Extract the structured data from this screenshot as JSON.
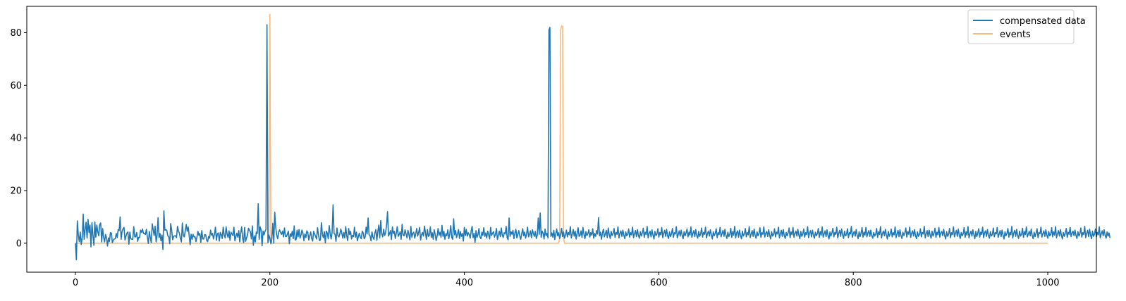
{
  "chart_data": {
    "type": "line",
    "title": "",
    "xlabel": "",
    "ylabel": "",
    "xlim": [
      -50,
      1050
    ],
    "ylim": [
      -11,
      90
    ],
    "xticks": [
      0,
      200,
      400,
      600,
      800,
      1000
    ],
    "yticks": [
      0,
      20,
      40,
      60,
      80
    ],
    "grid": false,
    "legend_position": "top-right",
    "series": [
      {
        "name": "compensated data",
        "color": "#1f77b4",
        "values": [
          0.0,
          -6.3,
          8.5,
          3.1,
          0.6,
          4.2,
          -0.5,
          2.2,
          11.1,
          1.5,
          5.3,
          8.0,
          2.0,
          9.1,
          4.0,
          6.9,
          -1.4,
          7.8,
          3.1,
          -0.8,
          8.1,
          2.3,
          6.9,
          4.4,
          2.8,
          7.1,
          7.7,
          0.5,
          5.6,
          2.2,
          0.5,
          3.3,
          2.1,
          -1.1,
          2.0,
          0.6,
          4.0,
          3.9,
          0.2,
          1.2,
          1.6,
          1.7,
          3.7,
          2.2,
          5.2,
          4.8,
          10.0,
          1.5,
          4.5,
          5.5,
          6.0,
          1.2,
          2.6,
          3.9,
          4.3,
          -0.4,
          4.2,
          1.7,
          1.5,
          1.5,
          6.3,
          2.4,
          2.4,
          4.1,
          0.7,
          2.2,
          2.1,
          5.0,
          4.1,
          5.4,
          3.7,
          3.8,
          3.3,
          5.3,
          2.3,
          -0.1,
          4.5,
          2.2,
          0.2,
          7.4,
          5.2,
          2.9,
          6.5,
          0.5,
          3.0,
          9.7,
          2.1,
          3.7,
          0.9,
          3.1,
          -2.4,
          12.3,
          4.9,
          5.1,
          4.9,
          2.8,
          2.5,
          -0.2,
          7.5,
          4.9,
          1.3,
          2.6,
          2.8,
          2.8,
          2.1,
          6.4,
          4.6,
          3.8,
          1.8,
          0.5,
          7.7,
          2.9,
          2.4,
          4.8,
          7.1,
          4.5,
          6.2,
          2.9,
          -0.6,
          3.4,
          1.5,
          3.4,
          2.4,
          2.5,
          0.6,
          2.4,
          4.5,
          3.0,
          3.7,
          0.3,
          4.8,
          1.6,
          1.6,
          3.3,
          3.2,
          1.1,
          0.6,
          2.6,
          1.9,
          5.0,
          3.1,
          3.7,
          1.6,
          3.4,
          6.1,
          1.1,
          3.6,
          3.9,
          0.8,
          4.1,
          3.2,
          1.8,
          6.1,
          3.1,
          2.0,
          6.2,
          3.5,
          2.2,
          4.7,
          1.1,
          4.2,
          3.5,
          2.9,
          6.1,
          0.9,
          2.5,
          3.8,
          2.3,
          4.8,
          0.5,
          4.0,
          6.2,
          1.8,
          0.2,
          6.0,
          0.7,
          2.0,
          3.1,
          5.7,
          4.9,
          4.3,
          1.6,
          6.6,
          -0.8,
          2.8,
          0.5,
          4.2,
          3.7,
          15.0,
          1.5,
          6.2,
          5.0,
          -1.0,
          4.6,
          3.2,
          4.5,
          5.3,
          83.0,
          0.2,
          3.1,
          1.9,
          -0.2,
          1.6,
          7.6,
          0.0,
          11.8,
          6.0,
          3.1,
          1.7,
          4.1,
          5.1,
          4.0,
          3.4,
          4.6,
          2.4,
          5.8,
          2.6,
          2.5,
          3.4,
          4.6,
          -0.2,
          3.6,
          2.6,
          4.6,
          1.7,
          6.6,
          1.2,
          1.4,
          5.0,
          2.4,
          5.2,
          1.9,
          3.1,
          5.0,
          3.8,
          0.9,
          3.5,
          2.2,
          4.7,
          4.1,
          1.2,
          2.8,
          4.3,
          1.7,
          0.8,
          4.5,
          3.5,
          2.6,
          1.6,
          5.9,
          3.1,
          1.0,
          1.3,
          7.8,
          3.4,
          2.1,
          4.4,
          0.1,
          4.6,
          3.9,
          1.7,
          6.7,
          3.6,
          1.6,
          4.1,
          14.6,
          3.7,
          3.4,
          0.7,
          5.8,
          2.8,
          2.4,
          3.6,
          5.4,
          3.7,
          1.9,
          4.1,
          2.0,
          6.3,
          2.9,
          1.0,
          5.6,
          3.3,
          4.5,
          1.6,
          3.0,
          2.5,
          6.1,
          2.3,
          4.2,
          0.9,
          2.5,
          3.8,
          2.3,
          1.7,
          4.6,
          3.9,
          1.7,
          2.4,
          6.1,
          3.5,
          9.6,
          3.3,
          2.9,
          0.9,
          4.3,
          2.3,
          1.5,
          3.9,
          5.2,
          1.1,
          4.4,
          6.9,
          2.0,
          8.6,
          3.6,
          2.4,
          5.3,
          2.9,
          4.0,
          6.9,
          12.0,
          2.7,
          3.6,
          4.8,
          1.4,
          6.2,
          3.7,
          4.5,
          1.8,
          3.8,
          6.3,
          2.6,
          3.4,
          4.3,
          1.5,
          7.2,
          3.1,
          2.8,
          5.1,
          3.6,
          2.0,
          4.9,
          3.3,
          1.3,
          6.4,
          2.3,
          3.7,
          4.2,
          1.9,
          3.6,
          5.6,
          2.7,
          4.1,
          6.0,
          1.2,
          3.2,
          4.1,
          2.7,
          6.5,
          3.9,
          1.5,
          5.2,
          2.6,
          3.0,
          6.2,
          2.2,
          4.0,
          1.5,
          5.1,
          3.4,
          1.0,
          2.8,
          5.6,
          3.0,
          4.2,
          2.3,
          6.8,
          2.6,
          4.5,
          1.5,
          3.6,
          2.9,
          5.1,
          1.7,
          3.5,
          6.7,
          2.2,
          1.5,
          9.3,
          3.2,
          4.8,
          2.1,
          3.6,
          5.2,
          1.8,
          4.4,
          2.6,
          3.7,
          0.8,
          6.0,
          2.9,
          5.3,
          2.7,
          4.0,
          3.3,
          1.9,
          4.6,
          6.4,
          2.1,
          3.7,
          0.3,
          4.8,
          2.2,
          3.3,
          5.6,
          2.4,
          1.7,
          4.2,
          3.0,
          5.9,
          2.6,
          3.9,
          2.0,
          4.6,
          3.2,
          1.6,
          6.0,
          2.9,
          3.8,
          4.4,
          2.3,
          3.4,
          5.6,
          1.4,
          3.1,
          4.6,
          2.5,
          5.8,
          3.0,
          2.2,
          4.0,
          3.5,
          6.4,
          2.2,
          1.3,
          9.6,
          2.6,
          4.4,
          3.4,
          4.9,
          1.7,
          3.9,
          5.3,
          2.0,
          3.3,
          4.8,
          2.7,
          1.5,
          3.6,
          5.5,
          2.8,
          4.2,
          1.9,
          3.5,
          6.1,
          2.4,
          3.3,
          4.7,
          2.1,
          5.1,
          3.7,
          2.6,
          4.5,
          1.8,
          3.0,
          9.6,
          3.4,
          11.5,
          2.2,
          4.6,
          3.8,
          1.6,
          5.4,
          2.9,
          3.7,
          2.0,
          81.0,
          82.0,
          2.6,
          3.9,
          2.3,
          4.9,
          1.4,
          3.6,
          5.4,
          2.8,
          4.0,
          1.8,
          3.3,
          5.7,
          2.5,
          4.3,
          1.9,
          3.1,
          5.0,
          2.4,
          4.1,
          3.2,
          6.3,
          2.0,
          3.5,
          5.2,
          2.7,
          4.6,
          1.6,
          3.8,
          5.9,
          2.6,
          3.0,
          4.7,
          2.2,
          6.0,
          3.3,
          1.7,
          4.4,
          2.9,
          3.6,
          5.1,
          2.3,
          4.0,
          3.1,
          5.5,
          1.9,
          3.7,
          2.6,
          4.8,
          3.5,
          9.7,
          2.8,
          4.2,
          1.5,
          3.9,
          5.3,
          2.4,
          3.6,
          4.9,
          2.1,
          5.8,
          3.3,
          1.8,
          4.5,
          2.9,
          3.7,
          5.6,
          2.2,
          4.1,
          3.4,
          6.2,
          2.0,
          3.8,
          4.7,
          2.6,
          5.0,
          3.1,
          1.7,
          4.3,
          2.8,
          3.5,
          5.4,
          2.3,
          4.0,
          3.2,
          6.1,
          2.1,
          3.6,
          4.8,
          2.5,
          5.2,
          3.0,
          1.9,
          4.4,
          2.7,
          3.9,
          5.7,
          2.2,
          4.2,
          3.3,
          6.4,
          2.0,
          3.7,
          4.6,
          2.4,
          5.1,
          3.1,
          1.6,
          4.5,
          2.9,
          3.4,
          5.5,
          2.3,
          4.1,
          3.2,
          6.0,
          2.1,
          3.8,
          4.9,
          2.6,
          5.3,
          2.8,
          1.8,
          4.3,
          2.5,
          3.6,
          5.6,
          2.2,
          4.0,
          3.5,
          6.3,
          2.0,
          3.3,
          4.7,
          2.7,
          5.0,
          3.0,
          1.7,
          4.4,
          2.8,
          3.9,
          5.4,
          2.4,
          4.2,
          3.1,
          6.2,
          2.2,
          3.7,
          4.8,
          2.5,
          5.2,
          2.9,
          1.9,
          4.5,
          2.6,
          3.5,
          5.8,
          2.3,
          4.1,
          3.4,
          6.1,
          2.0,
          3.6,
          4.6,
          2.7,
          5.1,
          3.2,
          1.6,
          4.3,
          2.8,
          3.8,
          5.5,
          2.1,
          4.0,
          3.3,
          6.0,
          2.4,
          3.7,
          4.9,
          2.6,
          5.3,
          3.0,
          1.8,
          4.2,
          2.5,
          3.4,
          5.7,
          2.2,
          4.4,
          3.1,
          6.4,
          2.0,
          3.9,
          4.7,
          2.3,
          5.0,
          2.9,
          1.7,
          4.6,
          2.7,
          3.6,
          5.6,
          2.4,
          4.1,
          3.2,
          6.3,
          2.1,
          3.5,
          4.8,
          2.6,
          5.4,
          3.1,
          1.9,
          4.3,
          2.8,
          3.7,
          5.9,
          2.2,
          4.0,
          3.4,
          6.2,
          2.3,
          3.8,
          4.5,
          2.5,
          5.1,
          3.0,
          1.6,
          4.4,
          2.7,
          3.3,
          5.5,
          2.4,
          4.2,
          3.5,
          6.1,
          2.0,
          3.6,
          4.9,
          2.6,
          5.2,
          2.9,
          1.8,
          4.1,
          2.8,
          3.9,
          5.8,
          2.1,
          4.3,
          3.2,
          6.0,
          2.2,
          3.7,
          4.6,
          2.7,
          5.3,
          3.1,
          1.7,
          4.5,
          2.6,
          3.4,
          5.4,
          2.3,
          4.0,
          3.3,
          6.3,
          2.1,
          3.8,
          4.8,
          2.4,
          5.0,
          3.0,
          1.9,
          4.2,
          2.8,
          3.6,
          5.6,
          2.2,
          4.4,
          3.1,
          6.2,
          2.3,
          3.5,
          4.7,
          2.5,
          5.1,
          2.9,
          1.6,
          4.3,
          2.7,
          3.9,
          5.7,
          2.4,
          4.1,
          3.4,
          6.1,
          2.0,
          3.7,
          4.9,
          2.6,
          5.4,
          3.2,
          1.8,
          4.6,
          2.8,
          3.3,
          5.5,
          2.1,
          4.0,
          3.5,
          6.4,
          2.2,
          3.6,
          4.5,
          2.7,
          5.2,
          3.0,
          1.7,
          4.4,
          2.5,
          3.8,
          5.9,
          2.3,
          4.2,
          3.1,
          6.0,
          2.4,
          3.9,
          4.8,
          2.6,
          5.0,
          2.9,
          1.9,
          4.1,
          2.7,
          3.4,
          5.6,
          2.2,
          4.3,
          3.3,
          6.3,
          2.0,
          3.7,
          4.6,
          2.8,
          5.3,
          3.1,
          1.6,
          4.5,
          2.6,
          3.6,
          5.4,
          2.4,
          4.0,
          3.2,
          6.2,
          2.1,
          3.5,
          4.9,
          2.5,
          5.1,
          3.0,
          1.8,
          4.2,
          2.9,
          3.9,
          5.8,
          2.3,
          4.4,
          3.4,
          6.1,
          2.2,
          3.8,
          4.7,
          2.7,
          5.2,
          2.8,
          1.7,
          4.3,
          2.6,
          3.3,
          5.5,
          2.4,
          4.1,
          3.5,
          6.4,
          2.0,
          3.6,
          4.8,
          2.5,
          5.0,
          3.1,
          1.9,
          4.6,
          2.7,
          3.7,
          5.7,
          2.2,
          4.2,
          3.2,
          6.0,
          2.3,
          3.9,
          4.5,
          2.8,
          5.3,
          2.9,
          1.6,
          4.4,
          2.6,
          3.4,
          5.6,
          2.1,
          4.0,
          3.3,
          6.2,
          2.4,
          3.7,
          4.9,
          2.6,
          5.4,
          3.0,
          1.8,
          4.1,
          2.8,
          3.6,
          5.9,
          2.2,
          4.3,
          3.1,
          6.3,
          2.0,
          3.5,
          4.6,
          2.7,
          5.1,
          3.2,
          1.7,
          4.5,
          2.5,
          3.8,
          5.5,
          2.3,
          4.2,
          3.4,
          6.1,
          2.1,
          3.9,
          4.7,
          2.6,
          5.2,
          2.9,
          1.9,
          4.4,
          2.7,
          3.3,
          5.8,
          2.4,
          4.0,
          3.5,
          6.0,
          2.2,
          3.6,
          4.8,
          2.5,
          5.0,
          3.1,
          1.6,
          4.3,
          2.8,
          3.7,
          5.6,
          2.3,
          4.1,
          3.2,
          6.4,
          2.0,
          3.8,
          4.9,
          2.6,
          5.3,
          3.0,
          1.8,
          4.6,
          2.7,
          3.4,
          5.7,
          2.2,
          4.4,
          3.3,
          6.2,
          2.4,
          3.5,
          4.5,
          2.8,
          5.4,
          2.9,
          1.7,
          4.2,
          2.5,
          3.9,
          5.5,
          2.1,
          4.0,
          3.6,
          6.1,
          2.3,
          3.7,
          4.7,
          2.6,
          5.1,
          3.2,
          1.9,
          4.5,
          2.8,
          3.3,
          5.9,
          2.4,
          4.3,
          3.1,
          6.3,
          2.0,
          3.6,
          4.8,
          2.7,
          5.2,
          3.0,
          1.6,
          4.1,
          2.6,
          3.8,
          5.6,
          2.2,
          4.2,
          3.4,
          6.0,
          2.5,
          3.9,
          4.6,
          2.8,
          5.0,
          2.9,
          1.8,
          4.4,
          2.7,
          3.5,
          5.8,
          2.3,
          4.0,
          3.3,
          6.4,
          2.1,
          3.7,
          4.9,
          2.5,
          5.3,
          3.1,
          1.7,
          4.6,
          2.6,
          3.4,
          5.4,
          2.4,
          4.1,
          3.2,
          6.2,
          2.0,
          3.6,
          4.7,
          2.8,
          5.1,
          3.0,
          1.9,
          4.3,
          2.7,
          3.9,
          2.0
        ]
      },
      {
        "name": "events",
        "color": "#ff7f0e",
        "opacity": 0.55,
        "points": [
          [
            0,
            0
          ],
          [
            198,
            0
          ],
          [
            199,
            2
          ],
          [
            200,
            87
          ],
          [
            201,
            2
          ],
          [
            202,
            0
          ],
          [
            497,
            0
          ],
          [
            498,
            2
          ],
          [
            499,
            81
          ],
          [
            500,
            82.5
          ],
          [
            501,
            82.5
          ],
          [
            502,
            2
          ],
          [
            503,
            0
          ],
          [
            1000,
            0
          ]
        ]
      }
    ]
  }
}
